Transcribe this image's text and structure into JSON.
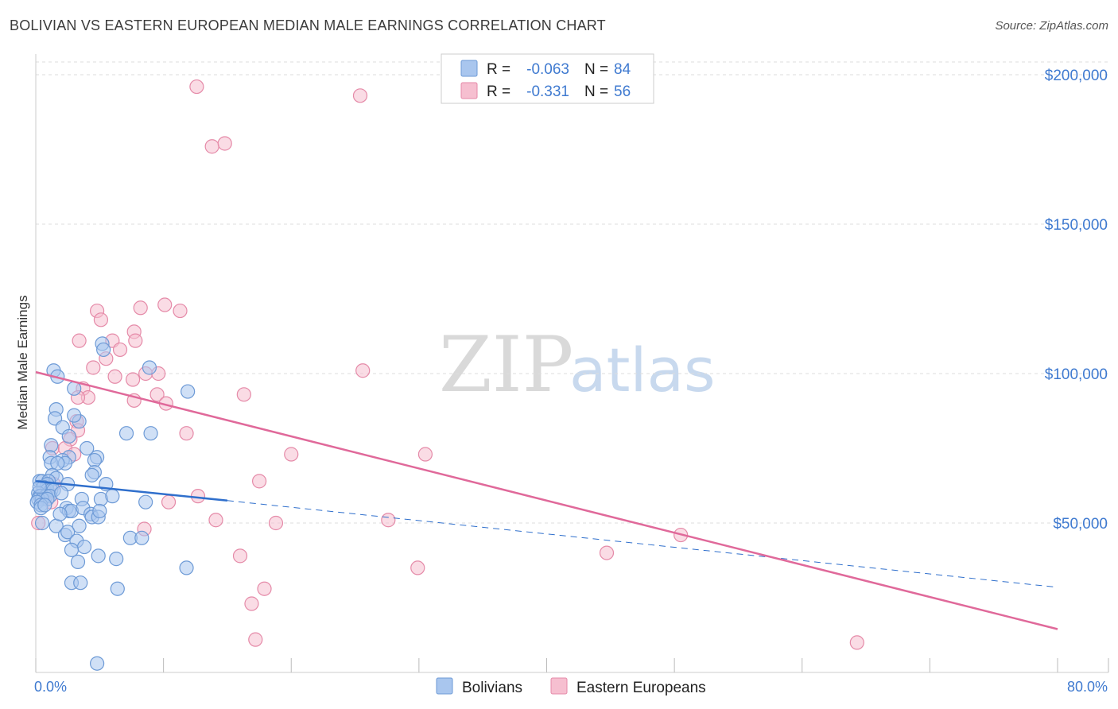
{
  "title": "BOLIVIAN VS EASTERN EUROPEAN MEDIAN MALE EARNINGS CORRELATION CHART",
  "source": "Source: ZipAtlas.com",
  "watermark": {
    "zip": "ZIP",
    "atlas": "atlas"
  },
  "colors": {
    "blue_fill": "#a9c6ee",
    "blue_stroke": "#6d9ad6",
    "blue_line": "#2f6fcc",
    "pink_fill": "#f6bfd0",
    "pink_stroke": "#e58aa8",
    "pink_line": "#e0699a",
    "grid": "#dddddd",
    "axis_text": "#3f7ad0"
  },
  "legend": {
    "rows": [
      {
        "r_label": "R =",
        "r_value": "-0.063",
        "n_label": "N =",
        "n_value": "84",
        "series": "blue"
      },
      {
        "r_label": "R =",
        "r_value": "-0.331",
        "n_label": "N =",
        "n_value": "56",
        "series": "pink"
      }
    ]
  },
  "bottom_legend": [
    {
      "label": "Bolivians",
      "series": "blue"
    },
    {
      "label": "Eastern Europeans",
      "series": "pink"
    }
  ],
  "chart_data": {
    "type": "scatter",
    "title": "BOLIVIAN VS EASTERN EUROPEAN MEDIAN MALE EARNINGS CORRELATION CHART",
    "xlabel": "",
    "ylabel": "Median Male Earnings",
    "xlim": [
      0,
      80
    ],
    "ylim": [
      0,
      210000
    ],
    "x_tick_labels": [
      "0.0%",
      "80.0%"
    ],
    "y_ticks": [
      {
        "value": 200000,
        "label": "$200,000"
      },
      {
        "value": 150000,
        "label": "$150,000"
      },
      {
        "value": 100000,
        "label": "$100,000"
      },
      {
        "value": 50000,
        "label": "$50,000"
      }
    ],
    "series": [
      {
        "name": "Bolivians",
        "color": "blue",
        "r": -0.063,
        "n": 84,
        "trend": {
          "x1": 0,
          "y1": 64000,
          "x2": 15,
          "y2": 57500,
          "dashed_to_x": 80,
          "dashed_to_y": 28500
        },
        "points": [
          [
            1.4,
            101000
          ],
          [
            1.7,
            99000
          ],
          [
            5.2,
            110000
          ],
          [
            5.3,
            108000
          ],
          [
            8.9,
            102000
          ],
          [
            3.0,
            95000
          ],
          [
            11.9,
            94000
          ],
          [
            1.6,
            88000
          ],
          [
            1.5,
            85000
          ],
          [
            3.4,
            84000
          ],
          [
            3.0,
            86000
          ],
          [
            2.1,
            82000
          ],
          [
            7.1,
            80000
          ],
          [
            9.0,
            80000
          ],
          [
            2.6,
            79000
          ],
          [
            1.2,
            76000
          ],
          [
            4.0,
            75000
          ],
          [
            1.1,
            72000
          ],
          [
            2.6,
            72000
          ],
          [
            2.1,
            71000
          ],
          [
            2.3,
            70000
          ],
          [
            4.8,
            72000
          ],
          [
            1.2,
            70000
          ],
          [
            4.6,
            71000
          ],
          [
            1.7,
            70000
          ],
          [
            4.6,
            67000
          ],
          [
            4.4,
            66000
          ],
          [
            1.3,
            66000
          ],
          [
            1.6,
            65000
          ],
          [
            0.3,
            64000
          ],
          [
            0.5,
            64000
          ],
          [
            1.0,
            64000
          ],
          [
            0.9,
            63000
          ],
          [
            2.5,
            63000
          ],
          [
            5.5,
            63000
          ],
          [
            0.6,
            62000
          ],
          [
            0.9,
            61000
          ],
          [
            1.2,
            61000
          ],
          [
            1.4,
            61000
          ],
          [
            0.2,
            60000
          ],
          [
            0.3,
            59000
          ],
          [
            0.4,
            59000
          ],
          [
            0.8,
            59000
          ],
          [
            1.1,
            59000
          ],
          [
            0.2,
            58000
          ],
          [
            0.5,
            58000
          ],
          [
            0.9,
            58000
          ],
          [
            3.6,
            58000
          ],
          [
            5.1,
            58000
          ],
          [
            6.0,
            59000
          ],
          [
            0.1,
            57000
          ],
          [
            0.4,
            56000
          ],
          [
            0.4,
            55000
          ],
          [
            8.6,
            57000
          ],
          [
            2.4,
            55000
          ],
          [
            2.6,
            54000
          ],
          [
            2.8,
            54000
          ],
          [
            3.7,
            55000
          ],
          [
            4.3,
            53000
          ],
          [
            4.4,
            52000
          ],
          [
            4.9,
            52000
          ],
          [
            5.0,
            54000
          ],
          [
            3.4,
            49000
          ],
          [
            1.6,
            49000
          ],
          [
            0.5,
            50000
          ],
          [
            7.4,
            45000
          ],
          [
            8.3,
            45000
          ],
          [
            2.3,
            46000
          ],
          [
            2.5,
            47000
          ],
          [
            3.2,
            44000
          ],
          [
            3.8,
            42000
          ],
          [
            2.8,
            41000
          ],
          [
            4.9,
            39000
          ],
          [
            6.3,
            38000
          ],
          [
            3.3,
            37000
          ],
          [
            11.8,
            35000
          ],
          [
            2.8,
            30000
          ],
          [
            3.5,
            30000
          ],
          [
            6.4,
            28000
          ],
          [
            4.8,
            3000
          ],
          [
            0.3,
            62000
          ],
          [
            1.9,
            53000
          ],
          [
            0.7,
            56000
          ],
          [
            2.0,
            60000
          ]
        ]
      },
      {
        "name": "Eastern Europeans",
        "color": "pink",
        "r": -0.331,
        "n": 56,
        "trend": {
          "x1": 0,
          "y1": 100500,
          "x2": 80,
          "y2": 14500
        },
        "points": [
          [
            12.6,
            196000
          ],
          [
            25.4,
            193000
          ],
          [
            13.8,
            176000
          ],
          [
            14.8,
            177000
          ],
          [
            11.3,
            121000
          ],
          [
            8.2,
            122000
          ],
          [
            10.1,
            123000
          ],
          [
            4.8,
            121000
          ],
          [
            5.1,
            118000
          ],
          [
            3.4,
            111000
          ],
          [
            7.7,
            114000
          ],
          [
            6.0,
            111000
          ],
          [
            7.8,
            111000
          ],
          [
            6.6,
            108000
          ],
          [
            5.5,
            105000
          ],
          [
            4.5,
            102000
          ],
          [
            8.6,
            100000
          ],
          [
            9.6,
            100000
          ],
          [
            6.2,
            99000
          ],
          [
            7.6,
            98000
          ],
          [
            25.6,
            101000
          ],
          [
            3.7,
            95000
          ],
          [
            4.1,
            92000
          ],
          [
            3.3,
            92000
          ],
          [
            9.5,
            93000
          ],
          [
            16.3,
            93000
          ],
          [
            7.7,
            91000
          ],
          [
            10.2,
            90000
          ],
          [
            3.2,
            84000
          ],
          [
            3.3,
            81000
          ],
          [
            2.7,
            78000
          ],
          [
            11.8,
            80000
          ],
          [
            1.3,
            75000
          ],
          [
            20.0,
            73000
          ],
          [
            30.5,
            73000
          ],
          [
            17.5,
            64000
          ],
          [
            1.4,
            63000
          ],
          [
            12.7,
            59000
          ],
          [
            10.4,
            57000
          ],
          [
            1.2,
            57000
          ],
          [
            0.2,
            50000
          ],
          [
            14.1,
            51000
          ],
          [
            18.8,
            50000
          ],
          [
            27.6,
            51000
          ],
          [
            8.5,
            48000
          ],
          [
            50.5,
            46000
          ],
          [
            16.0,
            39000
          ],
          [
            44.7,
            40000
          ],
          [
            29.9,
            35000
          ],
          [
            17.9,
            28000
          ],
          [
            16.9,
            23000
          ],
          [
            17.2,
            11000
          ],
          [
            64.3,
            10000
          ],
          [
            2.3,
            75000
          ],
          [
            0.8,
            60000
          ],
          [
            3.0,
            73000
          ]
        ]
      }
    ]
  }
}
